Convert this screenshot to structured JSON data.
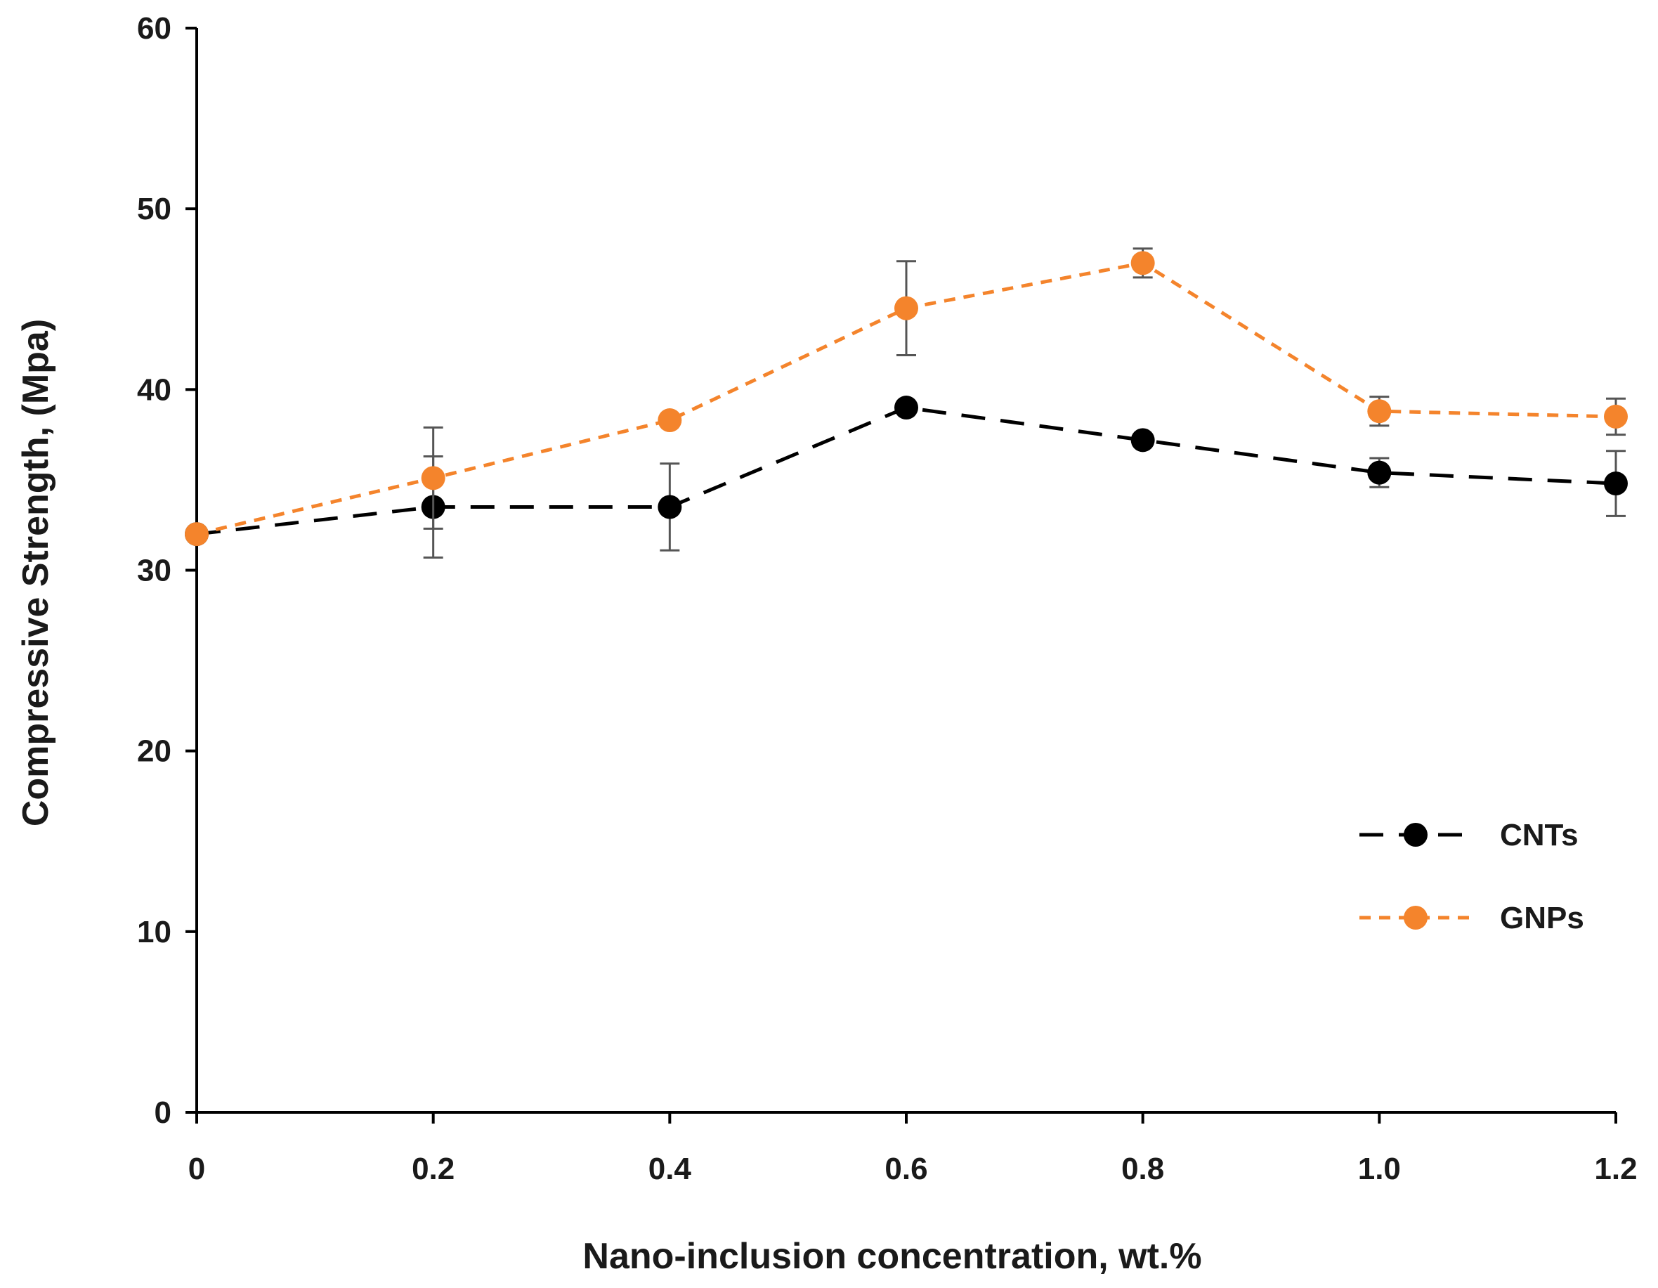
{
  "chart_data": {
    "type": "line",
    "title": "",
    "xlabel": "Nano-inclusion concentration, wt.%",
    "ylabel": "Compressive Strength,  (Mpa)",
    "x": [
      0,
      0.2,
      0.4,
      0.6,
      0.8,
      1.0,
      1.2
    ],
    "x_tick_labels": [
      "0",
      "0.2",
      "0.4",
      "0.6",
      "0.8",
      "1.0",
      "1.2"
    ],
    "xlim": [
      0,
      1.2
    ],
    "y_ticks": [
      0,
      10,
      20,
      30,
      40,
      50,
      60
    ],
    "y_tick_labels": [
      "0",
      "10",
      "20",
      "30",
      "40",
      "50",
      "60"
    ],
    "ylim": [
      0,
      60
    ],
    "grid": false,
    "legend_position": "right",
    "series": [
      {
        "name": "CNTs",
        "values": [
          32,
          33.5,
          33.5,
          39,
          37.2,
          35.4,
          34.8
        ],
        "errors": [
          0,
          2.8,
          2.4,
          0,
          0,
          0.8,
          1.8
        ],
        "color": "#000000",
        "line_style": "long-dash"
      },
      {
        "name": "GNPs",
        "values": [
          32,
          35.1,
          38.3,
          44.5,
          47,
          38.8,
          38.5
        ],
        "errors": [
          0,
          2.8,
          0,
          2.6,
          0.8,
          0.8,
          1.0
        ],
        "color": "#f4842c",
        "line_style": "short-dash"
      }
    ],
    "error_bar_color": "#555555"
  }
}
